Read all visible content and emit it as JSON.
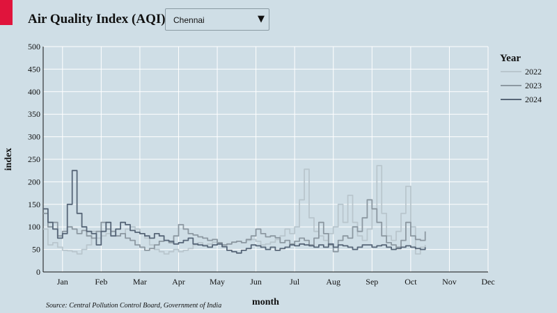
{
  "header": {
    "title": "Air Quality Index (AQI):",
    "city_select": {
      "value": "Chennai"
    }
  },
  "source": "Source: Central Pollution Control Board, Government of India",
  "colors": {
    "accent": "#e0143c",
    "background": "#cfdee6",
    "grid": "#ffffff"
  },
  "chart_data": {
    "type": "line",
    "xlabel": "month",
    "ylabel": "index",
    "ylim": [
      0,
      500
    ],
    "yticks": [
      0,
      50,
      100,
      150,
      200,
      250,
      300,
      350,
      400,
      450,
      500
    ],
    "x_months": [
      "Jan",
      "Feb",
      "Mar",
      "Apr",
      "May",
      "Jun",
      "Jul",
      "Aug",
      "Sep",
      "Oct",
      "Nov",
      "Dec"
    ],
    "legend": {
      "title": "Year",
      "position": "right"
    },
    "series": [
      {
        "name": "2022",
        "color": "#b9c6cd",
        "points": [
          [
            0,
            95
          ],
          [
            0.5,
            60
          ],
          [
            1,
            65
          ],
          [
            1.5,
            55
          ],
          [
            2,
            48
          ],
          [
            2.5,
            47
          ],
          [
            3,
            45
          ],
          [
            3.5,
            40
          ],
          [
            4,
            50
          ],
          [
            4.5,
            60
          ],
          [
            5,
            90
          ],
          [
            5.5,
            75
          ],
          [
            6,
            80
          ],
          [
            6.5,
            85
          ],
          [
            7,
            90
          ],
          [
            7.5,
            80
          ],
          [
            8,
            85
          ],
          [
            8.5,
            95
          ],
          [
            9,
            100
          ],
          [
            9.5,
            95
          ],
          [
            10,
            85
          ],
          [
            10.5,
            75
          ],
          [
            11,
            60
          ],
          [
            11.5,
            50
          ],
          [
            12,
            45
          ],
          [
            12.5,
            40
          ],
          [
            13,
            45
          ],
          [
            13.5,
            50
          ],
          [
            14,
            45
          ],
          [
            14.5,
            48
          ],
          [
            15,
            52
          ],
          [
            15.5,
            60
          ],
          [
            16,
            65
          ],
          [
            16.5,
            60
          ],
          [
            17,
            62
          ],
          [
            17.5,
            66
          ],
          [
            18,
            65
          ],
          [
            18.5,
            60
          ],
          [
            19,
            62
          ],
          [
            19.5,
            66
          ],
          [
            20,
            68
          ],
          [
            20.5,
            65
          ],
          [
            21,
            70
          ],
          [
            21.5,
            72
          ],
          [
            22,
            68
          ],
          [
            22.5,
            60
          ],
          [
            23,
            62
          ],
          [
            23.5,
            66
          ],
          [
            24,
            72
          ],
          [
            24.5,
            80
          ],
          [
            25,
            95
          ],
          [
            25.5,
            85
          ],
          [
            26,
            100
          ],
          [
            26.5,
            160
          ],
          [
            27,
            228
          ],
          [
            27.5,
            120
          ],
          [
            28,
            90
          ],
          [
            28.5,
            80
          ],
          [
            29,
            70
          ],
          [
            29.5,
            85
          ],
          [
            30,
            100
          ],
          [
            30.5,
            150
          ],
          [
            31,
            110
          ],
          [
            31.5,
            170
          ],
          [
            32,
            110
          ],
          [
            32.5,
            80
          ],
          [
            33,
            70
          ],
          [
            33.5,
            95
          ],
          [
            34,
            140
          ],
          [
            34.5,
            236
          ],
          [
            35,
            130
          ],
          [
            35.5,
            80
          ],
          [
            36,
            70
          ],
          [
            36.5,
            90
          ],
          [
            37,
            130
          ],
          [
            37.5,
            190
          ],
          [
            38,
            100
          ],
          [
            38.5,
            40
          ],
          [
            39,
            55
          ],
          [
            39.5,
            60
          ]
        ]
      },
      {
        "name": "2023",
        "color": "#8c98a1",
        "points": [
          [
            0,
            130
          ],
          [
            0.5,
            100
          ],
          [
            1,
            110
          ],
          [
            1.5,
            80
          ],
          [
            2,
            90
          ],
          [
            2.5,
            100
          ],
          [
            3,
            95
          ],
          [
            3.5,
            85
          ],
          [
            4,
            92
          ],
          [
            4.5,
            80
          ],
          [
            5,
            75
          ],
          [
            5.5,
            90
          ],
          [
            6,
            110
          ],
          [
            6.5,
            95
          ],
          [
            7,
            90
          ],
          [
            7.5,
            80
          ],
          [
            8,
            85
          ],
          [
            8.5,
            75
          ],
          [
            9,
            70
          ],
          [
            9.5,
            60
          ],
          [
            10,
            55
          ],
          [
            10.5,
            48
          ],
          [
            11,
            52
          ],
          [
            11.5,
            60
          ],
          [
            12,
            68
          ],
          [
            12.5,
            70
          ],
          [
            13,
            65
          ],
          [
            13.5,
            80
          ],
          [
            14,
            105
          ],
          [
            14.5,
            95
          ],
          [
            15,
            85
          ],
          [
            15.5,
            82
          ],
          [
            16,
            78
          ],
          [
            16.5,
            75
          ],
          [
            17,
            70
          ],
          [
            17.5,
            72
          ],
          [
            18,
            65
          ],
          [
            18.5,
            60
          ],
          [
            19,
            62
          ],
          [
            19.5,
            66
          ],
          [
            20,
            68
          ],
          [
            20.5,
            65
          ],
          [
            21,
            72
          ],
          [
            21.5,
            80
          ],
          [
            22,
            95
          ],
          [
            22.5,
            85
          ],
          [
            23,
            78
          ],
          [
            23.5,
            80
          ],
          [
            24,
            76
          ],
          [
            24.5,
            65
          ],
          [
            25,
            70
          ],
          [
            25.5,
            62
          ],
          [
            26,
            68
          ],
          [
            26.5,
            75
          ],
          [
            27,
            70
          ],
          [
            27.5,
            60
          ],
          [
            28,
            75
          ],
          [
            28.5,
            110
          ],
          [
            29,
            85
          ],
          [
            29.5,
            60
          ],
          [
            30,
            45
          ],
          [
            30.5,
            70
          ],
          [
            31,
            80
          ],
          [
            31.5,
            75
          ],
          [
            32,
            100
          ],
          [
            32.5,
            90
          ],
          [
            33,
            120
          ],
          [
            33.5,
            160
          ],
          [
            34,
            140
          ],
          [
            34.5,
            110
          ],
          [
            35,
            80
          ],
          [
            35.5,
            65
          ],
          [
            36,
            60
          ],
          [
            36.5,
            55
          ],
          [
            37,
            70
          ],
          [
            37.5,
            110
          ],
          [
            38,
            80
          ],
          [
            38.5,
            72
          ],
          [
            39,
            70
          ],
          [
            39.5,
            90
          ]
        ]
      },
      {
        "name": "2024",
        "color": "#566577",
        "points": [
          [
            0,
            140
          ],
          [
            0.5,
            110
          ],
          [
            1,
            95
          ],
          [
            1.5,
            75
          ],
          [
            2,
            85
          ],
          [
            2.5,
            150
          ],
          [
            3,
            225
          ],
          [
            3.5,
            130
          ],
          [
            4,
            100
          ],
          [
            4.5,
            90
          ],
          [
            5,
            85
          ],
          [
            5.5,
            60
          ],
          [
            6,
            90
          ],
          [
            6.5,
            110
          ],
          [
            7,
            80
          ],
          [
            7.5,
            95
          ],
          [
            8,
            110
          ],
          [
            8.5,
            105
          ],
          [
            9,
            92
          ],
          [
            9.5,
            88
          ],
          [
            10,
            85
          ],
          [
            10.5,
            80
          ],
          [
            11,
            75
          ],
          [
            11.5,
            85
          ],
          [
            12,
            80
          ],
          [
            12.5,
            70
          ],
          [
            13,
            68
          ],
          [
            13.5,
            62
          ],
          [
            14,
            65
          ],
          [
            14.5,
            70
          ],
          [
            15,
            75
          ],
          [
            15.5,
            62
          ],
          [
            16,
            60
          ],
          [
            16.5,
            58
          ],
          [
            17,
            55
          ],
          [
            17.5,
            60
          ],
          [
            18,
            62
          ],
          [
            18.5,
            56
          ],
          [
            19,
            48
          ],
          [
            19.5,
            45
          ],
          [
            20,
            42
          ],
          [
            20.5,
            48
          ],
          [
            21,
            52
          ],
          [
            21.5,
            60
          ],
          [
            22,
            58
          ],
          [
            22.5,
            55
          ],
          [
            23,
            50
          ],
          [
            23.5,
            55
          ],
          [
            24,
            48
          ],
          [
            24.5,
            52
          ],
          [
            25,
            55
          ],
          [
            25.5,
            60
          ],
          [
            26,
            58
          ],
          [
            26.5,
            62
          ],
          [
            27,
            60
          ],
          [
            27.5,
            58
          ],
          [
            28,
            55
          ],
          [
            28.5,
            60
          ],
          [
            29,
            55
          ],
          [
            29.5,
            62
          ],
          [
            30,
            55
          ],
          [
            30.5,
            60
          ],
          [
            31,
            58
          ],
          [
            31.5,
            55
          ],
          [
            32,
            50
          ],
          [
            32.5,
            55
          ],
          [
            33,
            60
          ],
          [
            33.5,
            60
          ],
          [
            34,
            55
          ],
          [
            34.5,
            58
          ],
          [
            35,
            60
          ],
          [
            35.5,
            55
          ],
          [
            36,
            50
          ],
          [
            36.5,
            52
          ],
          [
            37,
            55
          ],
          [
            37.5,
            58
          ],
          [
            38,
            55
          ],
          [
            38.5,
            52
          ],
          [
            39,
            50
          ],
          [
            39.5,
            55
          ]
        ]
      }
    ]
  }
}
